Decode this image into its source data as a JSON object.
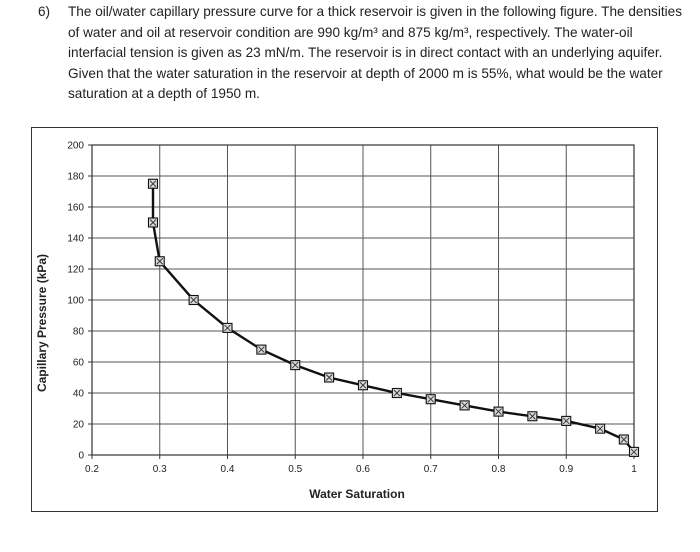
{
  "question": {
    "number": "6)",
    "text": "The oil/water capillary pressure curve for a thick reservoir is given in the following figure. The densities of water and oil at reservoir condition are 990 kg/m³ and 875 kg/m³, respectively. The water-oil interfacial tension is given as 23 mN/m. The reservoir is in direct contact with an underlying aquifer. Given that the water saturation in the reservoir at depth of 2000 m is 55%, what would be the water saturation at a depth of 1950 m."
  },
  "chart_data": {
    "type": "line",
    "title": "",
    "xlabel": "Water Saturation",
    "ylabel": "Capillary Pressure (kPa)",
    "xlim": [
      0.2,
      1.0
    ],
    "ylim": [
      0,
      200
    ],
    "xticks": [
      "0.2",
      "0.3",
      "0.4",
      "0.5",
      "0.6",
      "0.7",
      "0.8",
      "0.9",
      "1"
    ],
    "yticks": [
      "0",
      "20",
      "40",
      "60",
      "80",
      "100",
      "120",
      "140",
      "160",
      "180",
      "200"
    ],
    "grid": true,
    "marker": "square",
    "series": [
      {
        "x": [
          0.29,
          0.29,
          0.3,
          0.35,
          0.4,
          0.45,
          0.5,
          0.55,
          0.6,
          0.65,
          0.7,
          0.75,
          0.8,
          0.85,
          0.9,
          0.95,
          0.985,
          1.0
        ],
        "y": [
          175,
          150,
          125,
          100,
          82,
          68,
          58,
          50,
          45,
          40,
          36,
          32,
          28,
          25,
          22,
          17,
          10,
          2
        ]
      }
    ]
  }
}
